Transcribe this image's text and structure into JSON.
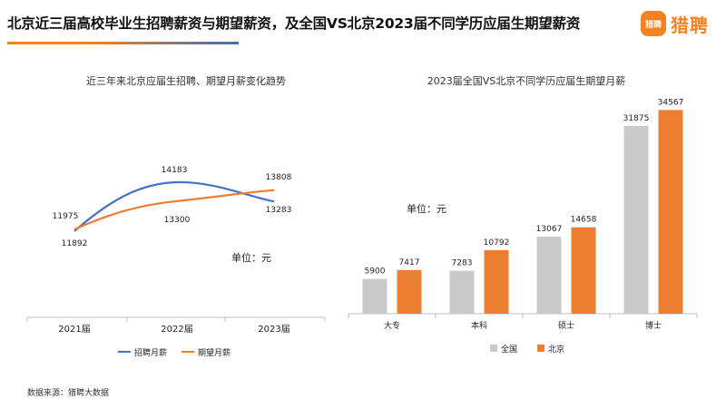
{
  "header": {
    "title": "北京近三届高校毕业生招聘薪资与期望薪资，及全国VS北京2023届不同学历应届生期望薪资",
    "logo_badge": "猎聘",
    "logo_text": "猎聘"
  },
  "source_note": "数据来源：猎聘大数据",
  "chart_data": [
    {
      "type": "line",
      "title": "近三年来北京应届生招聘、期望月薪变化趋势",
      "unit_note": "单位：元",
      "categories": [
        "2021届",
        "2022届",
        "2023届"
      ],
      "series": [
        {
          "name": "招聘月薪",
          "color": "#4472c4",
          "values": [
            11892,
            14183,
            13283
          ]
        },
        {
          "name": "期望月薪",
          "color": "#ed7d31",
          "values": [
            11975,
            13300,
            13808
          ]
        }
      ],
      "legend_position": "bottom"
    },
    {
      "type": "bar",
      "title": "2023届全国VS北京不同学历应届生期望月薪",
      "unit_note": "单位：元",
      "categories": [
        "大专",
        "本科",
        "硕士",
        "博士"
      ],
      "series": [
        {
          "name": "全国",
          "color": "#c9c9c9",
          "values": [
            5900,
            7283,
            13067,
            31875
          ]
        },
        {
          "name": "北京",
          "color": "#ed7d31",
          "values": [
            7417,
            10792,
            14658,
            34567
          ]
        }
      ],
      "ylim": [
        0,
        36000
      ],
      "legend_position": "bottom"
    }
  ]
}
